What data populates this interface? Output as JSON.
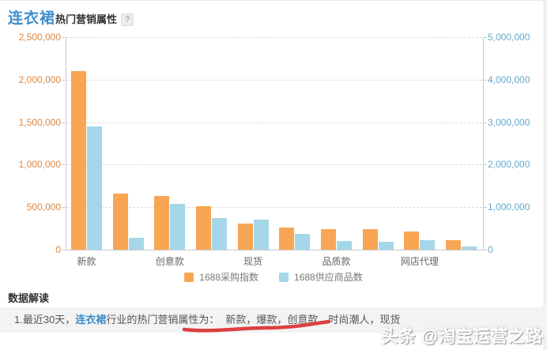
{
  "title": {
    "keyword": "连衣裙",
    "suffix": "热门营销属性",
    "help_icon": "?"
  },
  "chart_data": {
    "type": "bar",
    "title": "连衣裙热门营销属性",
    "x_tick_labels": [
      "新款",
      "",
      "创意款",
      "",
      "现货",
      "",
      "品质款",
      "",
      "网店代理",
      ""
    ],
    "series": [
      {
        "name": "1688采购指数",
        "axis": "left",
        "color": "#F8A654",
        "values": [
          2100000,
          660000,
          630000,
          510000,
          310000,
          260000,
          245000,
          240000,
          210000,
          110000
        ]
      },
      {
        "name": "1688供应商品数",
        "axis": "right",
        "color": "#A4D7E8",
        "values": [
          2900000,
          280000,
          1080000,
          740000,
          700000,
          380000,
          210000,
          190000,
          215000,
          80000
        ]
      }
    ],
    "left_axis": {
      "min": 0,
      "max": 2500000,
      "tick_labels": [
        "2,500,000",
        "2,000,000",
        "1,500,000",
        "1,000,000",
        "500,000",
        "0"
      ],
      "color": "#E0853C"
    },
    "right_axis": {
      "min": 0,
      "max": 5000000,
      "tick_labels": [
        "5,000,000",
        "4,000,000",
        "3,000,000",
        "2,000,000",
        "1,000,000",
        "0"
      ],
      "color": "#64A9CE"
    },
    "grid": "dashed-horizontal",
    "legend_position": "bottom-center"
  },
  "interpretation": {
    "heading": "数据解读",
    "line_prefix": "1.最近30天，",
    "line_link": "连衣裙",
    "line_middle": "行业的热门营销属性为：",
    "line_highlight": "新款，爆款，创意款，时尚潮人，现货",
    "annotation_color": "#DC4040"
  },
  "watermark": {
    "text": "头条 @淘宝运营之路"
  }
}
